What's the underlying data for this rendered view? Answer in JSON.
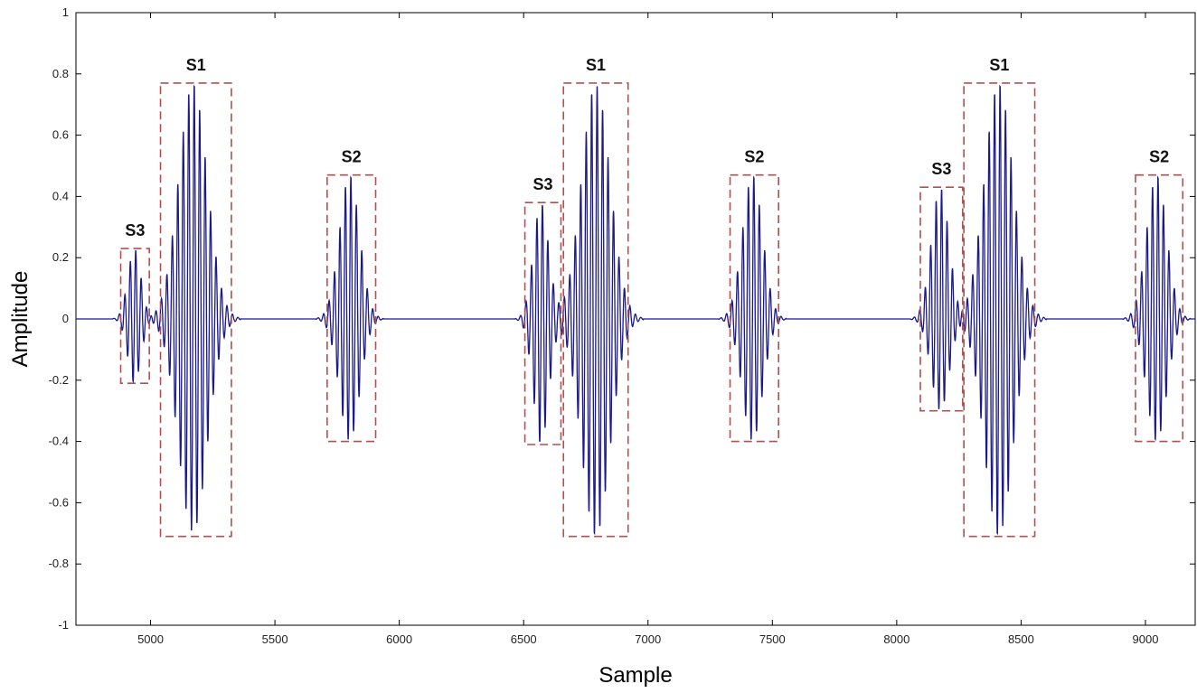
{
  "chart_data": {
    "type": "line",
    "xlabel": "Sample",
    "ylabel": "Amplitude",
    "xlim": [
      4700,
      9200
    ],
    "ylim": [
      -1,
      1
    ],
    "xticks": [
      5000,
      5500,
      6000,
      6500,
      7000,
      7500,
      8000,
      8500,
      9000
    ],
    "yticks": [
      -1,
      -0.8,
      -0.6,
      -0.4,
      -0.2,
      0,
      0.2,
      0.4,
      0.6,
      0.8,
      1
    ],
    "grid": false,
    "colors": {
      "signal": "#1a1a8c",
      "envelope": "#b22222",
      "box": "#b05050",
      "axis": "#000000"
    },
    "annotations": [
      {
        "label": "S3",
        "x_range": [
          4880,
          4995
        ],
        "y_range": [
          -0.21,
          0.23
        ]
      },
      {
        "label": "S1",
        "x_range": [
          5040,
          5325
        ],
        "y_range": [
          -0.71,
          0.77
        ]
      },
      {
        "label": "S2",
        "x_range": [
          5710,
          5905
        ],
        "y_range": [
          -0.4,
          0.47
        ]
      },
      {
        "label": "S3",
        "x_range": [
          6505,
          6650
        ],
        "y_range": [
          -0.41,
          0.38
        ]
      },
      {
        "label": "S1",
        "x_range": [
          6660,
          6920
        ],
        "y_range": [
          -0.71,
          0.77
        ]
      },
      {
        "label": "S2",
        "x_range": [
          7330,
          7525
        ],
        "y_range": [
          -0.4,
          0.47
        ]
      },
      {
        "label": "S3",
        "x_range": [
          8095,
          8265
        ],
        "y_range": [
          -0.3,
          0.43
        ]
      },
      {
        "label": "S1",
        "x_range": [
          8270,
          8555
        ],
        "y_range": [
          -0.71,
          0.77
        ]
      },
      {
        "label": "S2",
        "x_range": [
          8960,
          9150
        ],
        "y_range": [
          -0.4,
          0.47
        ]
      }
    ],
    "bursts": [
      {
        "center": 4935,
        "width": 55,
        "peak": 0.23,
        "neg": 0.21
      },
      {
        "center": 5170,
        "width": 120,
        "peak": 0.77,
        "neg": 0.7
      },
      {
        "center": 5800,
        "width": 85,
        "peak": 0.47,
        "neg": 0.4
      },
      {
        "center": 6570,
        "width": 65,
        "peak": 0.38,
        "neg": 0.41
      },
      {
        "center": 6790,
        "width": 120,
        "peak": 0.77,
        "neg": 0.71
      },
      {
        "center": 7420,
        "width": 85,
        "peak": 0.47,
        "neg": 0.4
      },
      {
        "center": 8175,
        "width": 75,
        "peak": 0.43,
        "neg": 0.3
      },
      {
        "center": 8410,
        "width": 120,
        "peak": 0.77,
        "neg": 0.71
      },
      {
        "center": 9045,
        "width": 85,
        "peak": 0.47,
        "neg": 0.4
      }
    ]
  }
}
